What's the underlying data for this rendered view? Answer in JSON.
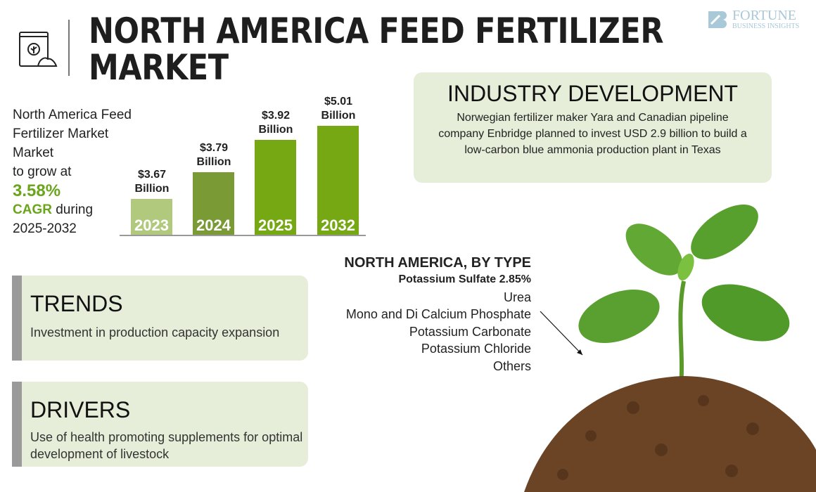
{
  "header": {
    "title": "NORTH AMERICA FEED FERTILIZER MARKET",
    "icon": "fertilizer-bag-icon"
  },
  "logo": {
    "line1": "FORTUNE",
    "line2": "BUSINESS INSIGHTS"
  },
  "intro": {
    "line1": "North America Feed",
    "line2": "Fertilizer Market",
    "line3": "Market",
    "line4": "to grow at",
    "cagr": "3.58%",
    "cagr_label": "CAGR",
    "during": " during",
    "period": "2025-2032"
  },
  "chart_data": {
    "type": "bar",
    "categories": [
      "2023",
      "2024",
      "2025",
      "2032"
    ],
    "values": [
      3.67,
      3.79,
      3.92,
      5.01
    ],
    "labels": [
      "$3.67",
      "$3.79",
      "$3.92",
      "$5.01"
    ],
    "unit": "Billion",
    "colors": [
      "#b0c97c",
      "#7a9a35",
      "#76a814",
      "#76a814"
    ]
  },
  "industry": {
    "title": "INDUSTRY DEVELOPMENT",
    "text": "Norwegian fertilizer maker Yara and Canadian pipeline company Enbridge planned to invest USD 2.9 billion to build a low-carbon blue ammonia production plant in Texas"
  },
  "trends": {
    "title": "TRENDS",
    "text": "Investment in production capacity expansion"
  },
  "drivers": {
    "title": "DRIVERS",
    "text": "Use of health promoting supplements for optimal development of livestock"
  },
  "types": {
    "title": "NORTH AMERICA, BY TYPE",
    "items": [
      "Potassium Sulfate 2.85%",
      "Urea",
      "Mono and Di Calcium Phosphate",
      "Potassium Carbonate",
      "Potassium Chloride",
      "Others"
    ]
  },
  "colors": {
    "accent": "#6aa51b",
    "box": "#e6eed9"
  }
}
